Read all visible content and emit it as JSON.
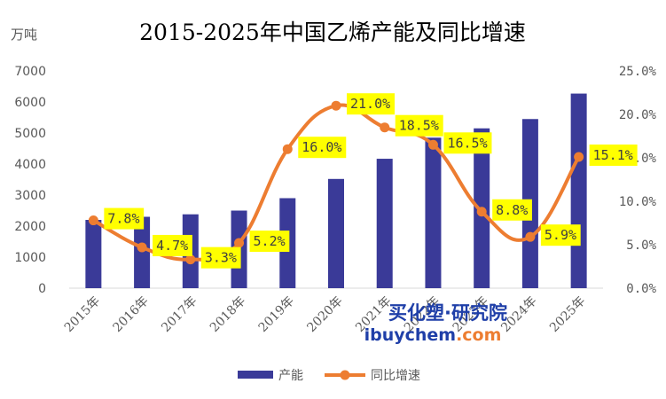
{
  "chart_data": {
    "type": "bar+line",
    "title": "2015-2025年中国乙烯产能及同比增速",
    "ylabel_left": "万吨",
    "categories": [
      "2015年",
      "2016年",
      "2017年",
      "2018年",
      "2019年",
      "2020年",
      "2021年",
      "2022年",
      "2023年",
      "2024年",
      "2025年"
    ],
    "series": [
      {
        "name": "产能",
        "type": "bar",
        "axis": "left",
        "color": "#3a3a98",
        "values": [
          2200,
          2300,
          2380,
          2500,
          2900,
          3520,
          4170,
          4850,
          5150,
          5450,
          6270
        ]
      },
      {
        "name": "同比增速",
        "type": "line",
        "axis": "right",
        "color": "#ed7d31",
        "values": [
          7.8,
          4.7,
          3.3,
          5.2,
          16.0,
          21.0,
          18.5,
          16.5,
          8.8,
          5.9,
          15.1
        ],
        "labels": [
          "7.8%",
          "4.7%",
          "3.3%",
          "5.2%",
          "16.0%",
          "21.0%",
          "18.5%",
          "16.5%",
          "8.8%",
          "5.9%",
          "15.1%"
        ]
      }
    ],
    "ylim_left": [
      0,
      7000
    ],
    "yticks_left": [
      "0",
      "1000",
      "2000",
      "3000",
      "4000",
      "5000",
      "6000",
      "7000"
    ],
    "ylim_right": [
      0,
      25
    ],
    "yticks_right": [
      "0.0%",
      "5.0%",
      "10.0%",
      "15.0%",
      "20.0%",
      "25.0%"
    ],
    "label_bg": "#ffff00",
    "legend": [
      "产能",
      "同比增速"
    ],
    "legend_position": "bottom"
  },
  "watermark": {
    "line1": "买化塑·研究院",
    "line2_a": "ibuychem",
    "line2_b": ".com"
  }
}
